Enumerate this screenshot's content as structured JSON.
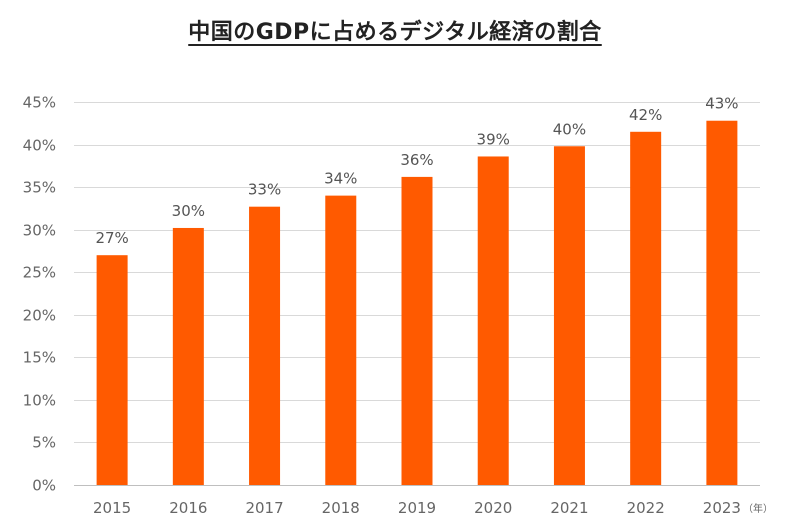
{
  "chart_data": {
    "type": "bar",
    "title": "中国のGDPに占めるデジタル経済の割合",
    "xlabel": "",
    "ylabel": "",
    "x_unit_label": "（年）",
    "categories": [
      "2015",
      "2016",
      "2017",
      "2018",
      "2019",
      "2020",
      "2021",
      "2022",
      "2023"
    ],
    "values": [
      27,
      30.2,
      32.7,
      34,
      36.2,
      38.6,
      39.8,
      41.5,
      42.8
    ],
    "data_labels": [
      "27%",
      "30%",
      "33%",
      "34%",
      "36%",
      "39%",
      "40%",
      "42%",
      "43%"
    ],
    "ylim": [
      0,
      45
    ],
    "yticks": [
      0,
      5,
      10,
      15,
      20,
      25,
      30,
      35,
      40,
      45
    ],
    "ytick_labels": [
      "0%",
      "5%",
      "10%",
      "15%",
      "20%",
      "25%",
      "30%",
      "35%",
      "40%",
      "45%"
    ],
    "grid": true,
    "legend": "none",
    "bar_color": "#ff5a00",
    "grid_color": "#d9d9d9"
  }
}
